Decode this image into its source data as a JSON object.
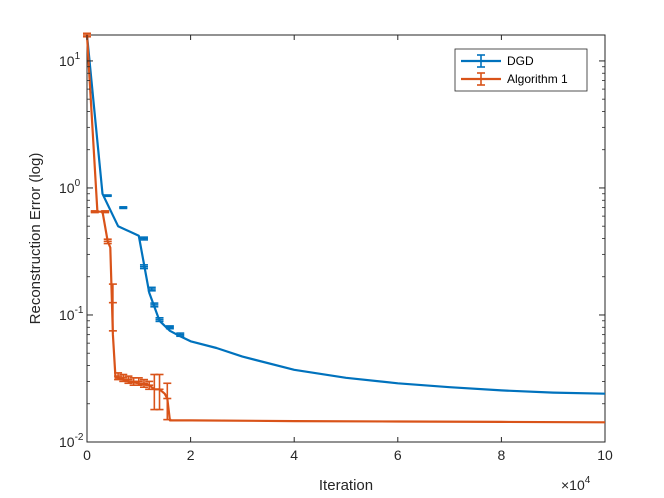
{
  "chart_data": {
    "type": "line",
    "title": "",
    "xlabel": "Iteration",
    "ylabel": "Reconstruction Error (log)",
    "x_multiplier_label": "×10",
    "x_multiplier_exponent": "4",
    "xlim": [
      0,
      10
    ],
    "ylim": [
      0.01,
      16
    ],
    "yscale": "log",
    "x_ticks": [
      0,
      2,
      4,
      6,
      8,
      10
    ],
    "x_tick_labels": [
      "0",
      "2",
      "4",
      "6",
      "8",
      "10"
    ],
    "y_ticks": [
      {
        "value": 0.01,
        "base": "10",
        "exp": "-2"
      },
      {
        "value": 0.1,
        "base": "10",
        "exp": "-1"
      },
      {
        "value": 1,
        "base": "10",
        "exp": "0"
      },
      {
        "value": 10,
        "base": "10",
        "exp": "1"
      }
    ],
    "legend_position": "top-right",
    "series": [
      {
        "name": "DGD",
        "color": "#0072BD",
        "x": [
          0,
          0.3,
          0.6,
          1.0,
          1.2,
          1.4,
          1.6,
          1.8,
          2.0,
          2.5,
          3.0,
          4.0,
          5.0,
          6.0,
          7.0,
          8.0,
          9.0,
          10.0
        ],
        "values": [
          16,
          0.9,
          0.5,
          0.42,
          0.15,
          0.09,
          0.075,
          0.068,
          0.062,
          0.055,
          0.047,
          0.037,
          0.032,
          0.029,
          0.027,
          0.0255,
          0.0245,
          0.024
        ],
        "error_bars": [
          {
            "x": 0.4,
            "y": 0.87,
            "err": 0.01
          },
          {
            "x": 0.7,
            "y": 0.7,
            "err": 0.01
          },
          {
            "x": 1.1,
            "y": 0.4,
            "err": 0.01
          },
          {
            "x": 1.1,
            "y": 0.24,
            "err": 0.008
          },
          {
            "x": 1.25,
            "y": 0.16,
            "err": 0.005
          },
          {
            "x": 1.3,
            "y": 0.12,
            "err": 0.004
          },
          {
            "x": 1.4,
            "y": 0.092,
            "err": 0.003
          },
          {
            "x": 1.6,
            "y": 0.08,
            "err": 0.002
          },
          {
            "x": 1.8,
            "y": 0.07,
            "err": 0.002
          }
        ]
      },
      {
        "name": "Algorithm 1",
        "color": "#D95319",
        "x": [
          0,
          0.2,
          0.3,
          0.4,
          0.45,
          0.5,
          0.55,
          0.6,
          0.7,
          0.8,
          1.0,
          1.2,
          1.3,
          1.4,
          1.5,
          1.55,
          1.6,
          2.0,
          4.0,
          6.0,
          8.0,
          10.0
        ],
        "values": [
          16,
          0.65,
          0.65,
          0.38,
          0.34,
          0.07,
          0.032,
          0.032,
          0.031,
          0.03,
          0.029,
          0.028,
          0.026,
          0.026,
          0.024,
          0.022,
          0.0148,
          0.0148,
          0.0146,
          0.0145,
          0.0144,
          0.0143
        ],
        "error_bars": [
          {
            "x": 0.0,
            "y": 16,
            "err": 0.5
          },
          {
            "x": 0.15,
            "y": 0.65,
            "err": 0.01
          },
          {
            "x": 0.35,
            "y": 0.65,
            "err": 0.01
          },
          {
            "x": 0.4,
            "y": 0.38,
            "err": 0.015
          },
          {
            "x": 0.5,
            "y": 0.125,
            "err": 0.05
          },
          {
            "x": 0.6,
            "y": 0.033,
            "err": 0.002
          },
          {
            "x": 0.7,
            "y": 0.032,
            "err": 0.002
          },
          {
            "x": 0.8,
            "y": 0.031,
            "err": 0.002
          },
          {
            "x": 0.9,
            "y": 0.03,
            "err": 0.002
          },
          {
            "x": 1.0,
            "y": 0.03,
            "err": 0.002
          },
          {
            "x": 1.1,
            "y": 0.029,
            "err": 0.002
          },
          {
            "x": 1.2,
            "y": 0.028,
            "err": 0.002
          },
          {
            "x": 1.3,
            "y": 0.026,
            "err": 0.008
          },
          {
            "x": 1.4,
            "y": 0.026,
            "err": 0.008
          },
          {
            "x": 1.55,
            "y": 0.022,
            "err": 0.007
          }
        ]
      }
    ]
  }
}
